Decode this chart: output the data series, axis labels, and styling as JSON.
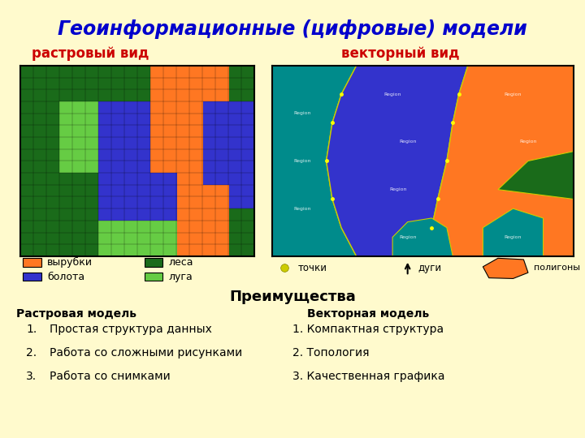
{
  "title": "Геоинформационные (цифровые) модели",
  "title_color": "#0000CC",
  "title_fontsize": 17,
  "bg_color": "#FFFACD",
  "raster_label": "растровый вид",
  "vector_label": "векторный вид",
  "label_color": "#CC0000",
  "label_fontsize": 12,
  "legend_items": [
    {
      "label": "вырубки",
      "color": "#FF7722"
    },
    {
      "label": "болота",
      "color": "#3333CC"
    },
    {
      "label": "леса",
      "color": "#1A6B1A"
    },
    {
      "label": "луга",
      "color": "#66CC44"
    }
  ],
  "advantages_title": "Преимущества",
  "raster_model_title": "Растровая модель",
  "vector_model_title": "Векторная модель",
  "raster_advantages": [
    "Простая структура данных",
    "Работа со сложными рисунками",
    "Работа со снимками"
  ],
  "vector_advantages": [
    "Компактная структура",
    "Топология",
    "Качественная графика"
  ],
  "colors": {
    "orange": "#FF7722",
    "blue": "#3333CC",
    "dark_green": "#1A6B1A",
    "light_green": "#66CC44",
    "teal": "#008B8B",
    "bg_panel": "#EEF0D0"
  }
}
